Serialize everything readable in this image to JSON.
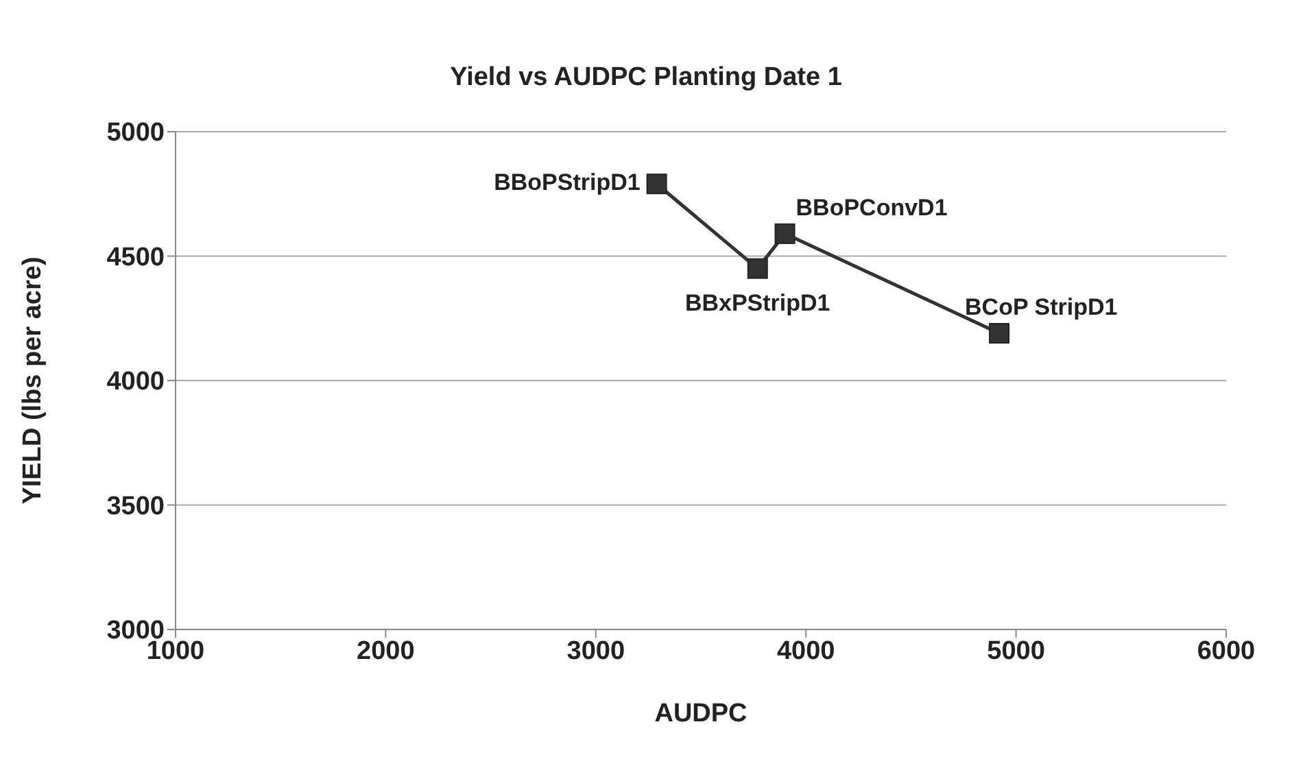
{
  "chart_data": {
    "type": "line",
    "title": "Yield vs AUDPC Planting Date 1",
    "xlabel": "AUDPC",
    "ylabel": "YIELD (lbs per acre)",
    "x": [
      3290,
      3770,
      3900,
      4920
    ],
    "series": [
      {
        "color": "#333333",
        "values": [
          4790,
          4450,
          4590,
          4190
        ]
      }
    ],
    "xlim": [
      1000,
      6000
    ],
    "xticks": [
      1000,
      2000,
      3000,
      4000,
      5000,
      6000
    ],
    "ylim": [
      3000,
      5000
    ],
    "yticks": [
      3000,
      3500,
      4000,
      4500,
      5000
    ],
    "grid": "y",
    "legend": false,
    "marker": "square",
    "line_style": "solid",
    "annotations": [
      {
        "text": "BBoPStripD1",
        "x": 3290,
        "y": 4790
      },
      {
        "text": "BBxPStripD1",
        "x": 3770,
        "y": 4450
      },
      {
        "text": "BBoPConvD1",
        "x": 3900,
        "y": 4590
      },
      {
        "text": "BCoP StripD1",
        "x": 4920,
        "y": 4190
      }
    ]
  }
}
